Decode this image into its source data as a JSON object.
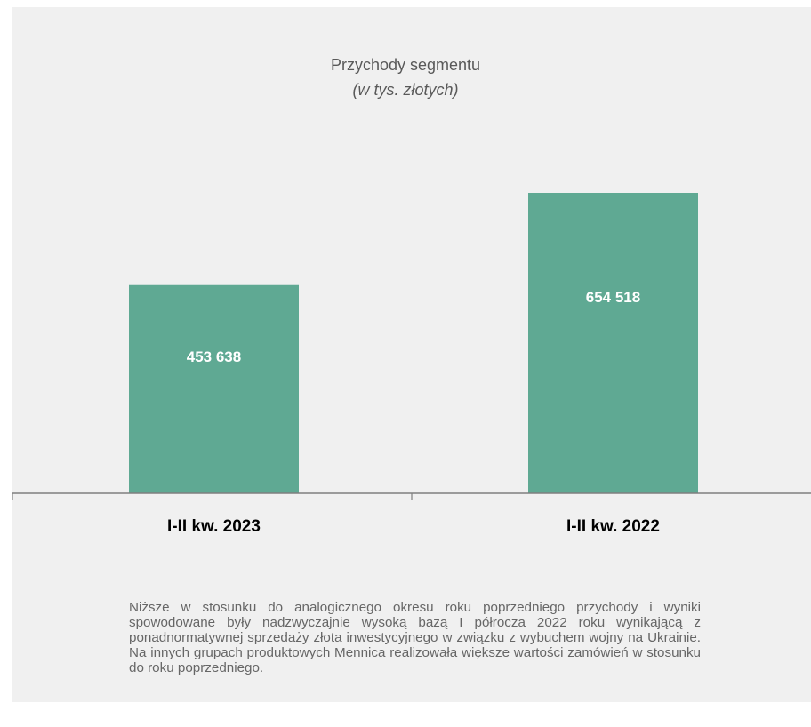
{
  "chart_data": {
    "type": "bar",
    "title": "Przychody segmentu",
    "subtitle": "(w tys. złotych)",
    "categories": [
      "I-II kw. 2023",
      "I-II kw. 2022"
    ],
    "values": [
      453638,
      654518
    ],
    "value_labels": [
      "453 638",
      "654 518"
    ],
    "bar_color": "#5fa993",
    "label_color": "#ffffff",
    "axis_color": "#7f7f7f",
    "grid": false,
    "legend": "none"
  },
  "footnote": "Niższe w stosunku do analogicznego okresu roku poprzedniego przychody i wyniki spowodowane były nadzwyczajnie wysoką bazą I półrocza 2022 roku wynikającą z ponadnormatywnej sprzedaży złota inwestycyjnego w związku z wybuchem wojny na Ukrainie. Na innych grupach produktowych Mennica realizowała większe wartości zamówień w stosunku do roku poprzedniego."
}
